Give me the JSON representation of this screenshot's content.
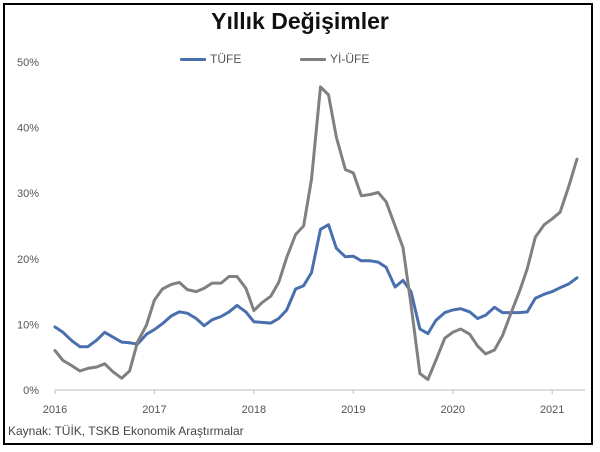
{
  "chart_data": {
    "type": "line",
    "title": "Yıllık Değişimler",
    "xlabel": "",
    "ylabel": "",
    "x_ticks": [
      "2016",
      "2017",
      "2018",
      "2019",
      "2020",
      "2021"
    ],
    "y_ticks": [
      "0%",
      "10%",
      "20%",
      "30%",
      "40%",
      "50%"
    ],
    "ylim": [
      0,
      50
    ],
    "xlim": [
      2016.0,
      2021.33
    ],
    "grid": false,
    "legend_position": "top-center",
    "series": [
      {
        "name": "TÜFE",
        "color": "#4a6faf",
        "x": [
          2016.0,
          2016.08,
          2016.17,
          2016.25,
          2016.33,
          2016.42,
          2016.5,
          2016.58,
          2016.67,
          2016.75,
          2016.83,
          2016.92,
          2017.0,
          2017.08,
          2017.17,
          2017.25,
          2017.33,
          2017.42,
          2017.5,
          2017.58,
          2017.67,
          2017.75,
          2017.83,
          2017.92,
          2018.0,
          2018.08,
          2018.17,
          2018.25,
          2018.33,
          2018.42,
          2018.5,
          2018.58,
          2018.67,
          2018.75,
          2018.83,
          2018.92,
          2019.0,
          2019.08,
          2019.17,
          2019.25,
          2019.33,
          2019.42,
          2019.5,
          2019.58,
          2019.67,
          2019.75,
          2019.83,
          2019.92,
          2020.0,
          2020.08,
          2020.17,
          2020.25,
          2020.33,
          2020.42,
          2020.5,
          2020.58,
          2020.67,
          2020.75,
          2020.83,
          2020.92,
          2021.0,
          2021.08,
          2021.17,
          2021.25
        ],
        "values": [
          9.6,
          8.8,
          7.5,
          6.6,
          6.6,
          7.6,
          8.8,
          8.1,
          7.3,
          7.2,
          7.0,
          8.5,
          9.2,
          10.1,
          11.3,
          11.9,
          11.7,
          10.9,
          9.8,
          10.7,
          11.2,
          11.9,
          12.9,
          11.9,
          10.4,
          10.3,
          10.2,
          10.9,
          12.2,
          15.4,
          15.9,
          17.9,
          24.5,
          25.2,
          21.6,
          20.3,
          20.4,
          19.7,
          19.7,
          19.5,
          18.7,
          15.7,
          16.7,
          15.0,
          9.3,
          8.6,
          10.6,
          11.8,
          12.2,
          12.4,
          11.9,
          10.9,
          11.4,
          12.6,
          11.8,
          11.8,
          11.8,
          11.9,
          14.0,
          14.6,
          15.0,
          15.6,
          16.2,
          17.1
        ]
      },
      {
        "name": "Yİ-ÜFE",
        "color": "#808080",
        "x": [
          2016.0,
          2016.08,
          2016.17,
          2016.25,
          2016.33,
          2016.42,
          2016.5,
          2016.58,
          2016.67,
          2016.75,
          2016.83,
          2016.92,
          2017.0,
          2017.08,
          2017.17,
          2017.25,
          2017.33,
          2017.42,
          2017.5,
          2017.58,
          2017.67,
          2017.75,
          2017.83,
          2017.92,
          2018.0,
          2018.08,
          2018.17,
          2018.25,
          2018.33,
          2018.42,
          2018.5,
          2018.58,
          2018.67,
          2018.75,
          2018.83,
          2018.92,
          2019.0,
          2019.08,
          2019.17,
          2019.25,
          2019.33,
          2019.42,
          2019.5,
          2019.58,
          2019.67,
          2019.75,
          2019.83,
          2019.92,
          2020.0,
          2020.08,
          2020.17,
          2020.25,
          2020.33,
          2020.42,
          2020.5,
          2020.58,
          2020.67,
          2020.75,
          2020.83,
          2020.92,
          2021.0,
          2021.08,
          2021.17,
          2021.25
        ],
        "values": [
          6.0,
          4.5,
          3.7,
          2.9,
          3.3,
          3.5,
          4.0,
          2.8,
          1.8,
          2.9,
          7.3,
          9.9,
          13.7,
          15.4,
          16.1,
          16.4,
          15.3,
          15.0,
          15.5,
          16.3,
          16.3,
          17.3,
          17.3,
          15.5,
          12.1,
          13.3,
          14.3,
          16.4,
          20.2,
          23.7,
          25.0,
          32.1,
          46.2,
          45.0,
          38.5,
          33.6,
          33.1,
          29.6,
          29.8,
          30.1,
          28.7,
          25.0,
          21.7,
          13.0,
          2.5,
          1.6,
          4.5,
          7.9,
          8.8,
          9.3,
          8.5,
          6.7,
          5.5,
          6.1,
          8.3,
          11.5,
          15.0,
          18.5,
          23.3,
          25.2,
          26.1,
          27.1,
          31.2,
          35.2
        ]
      }
    ]
  },
  "source_note": "Kaynak: TÜİK, TSKB Ekonomik Araştırmalar"
}
